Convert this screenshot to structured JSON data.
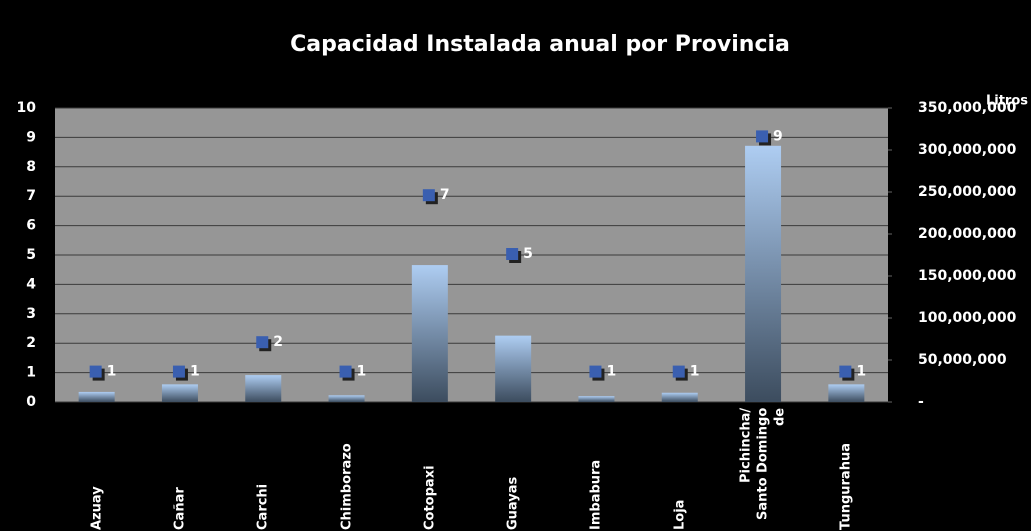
{
  "chart_data": {
    "type": "bar",
    "title": "Capacidad Instalada anual por Provincia",
    "y2_label": "Litros",
    "categories": [
      "Azuay",
      "Cañar",
      "Carchi",
      "Chimborazo",
      "Cotopaxi",
      "Guayas",
      "Imbabura",
      "Loja",
      "Pichincha/ Santo Domingo de",
      "Tungurahua"
    ],
    "series": [
      {
        "type": "bar",
        "axis": "y2",
        "values": [
          12000000,
          21000000,
          32000000,
          8000000,
          163000000,
          79000000,
          7000000,
          11000000,
          305000000,
          21000000
        ]
      },
      {
        "type": "scatter",
        "axis": "y",
        "color": "#3a5fb0",
        "values": [
          1,
          1,
          2,
          1,
          7,
          5,
          1,
          1,
          9,
          1
        ]
      }
    ],
    "ylim": [
      0,
      10
    ],
    "yticks": [
      0,
      1,
      2,
      3,
      4,
      5,
      6,
      7,
      8,
      9,
      10
    ],
    "y2lim": [
      0,
      350000000
    ],
    "y2ticks": [
      {
        "value": 0,
        "label": "-"
      },
      {
        "value": 50000000,
        "label": "50,000,000"
      },
      {
        "value": 100000000,
        "label": "100,000,000"
      },
      {
        "value": 150000000,
        "label": "150,000,000"
      },
      {
        "value": 200000000,
        "label": "200,000,000"
      },
      {
        "value": 250000000,
        "label": "250,000,000"
      },
      {
        "value": 300000000,
        "label": "300,000,000"
      },
      {
        "value": 350000000,
        "label": "350,000,000"
      }
    ],
    "grid": true
  }
}
